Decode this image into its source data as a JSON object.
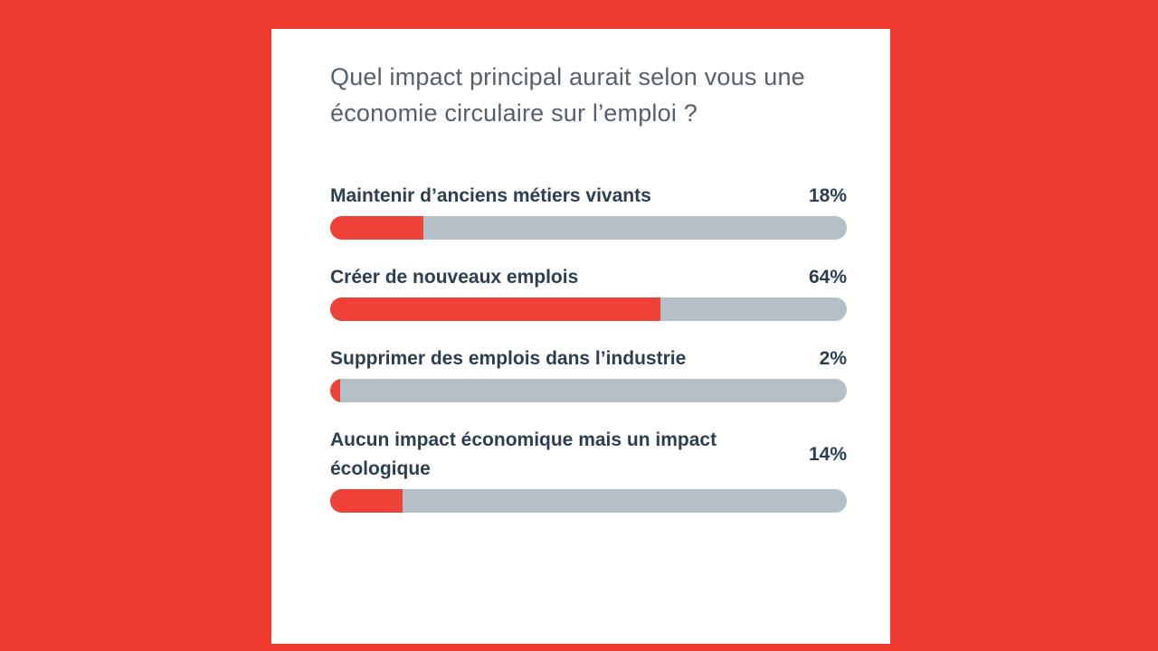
{
  "poll": {
    "question": "Quel impact principal aurait selon vous une économie circulaire sur l’emploi ?",
    "options": [
      {
        "label": "Maintenir d’anciens métiers vivants",
        "pct": "18%",
        "value": 18
      },
      {
        "label": "Créer de nouveaux emplois",
        "pct": "64%",
        "value": 64
      },
      {
        "label": "Supprimer des emplois dans l’industrie",
        "pct": "2%",
        "value": 2
      },
      {
        "label": "Aucun impact économique mais un impact écologique",
        "pct": "14%",
        "value": 14
      }
    ]
  },
  "colors": {
    "background": "#EF3B30",
    "card_background": "#FFFFFF",
    "bar_fill": "#EE4238",
    "bar_track": "#B4BFC7",
    "question_text": "#55606B",
    "label_text": "#2C3E50"
  },
  "chart_data": {
    "type": "bar",
    "orientation": "horizontal",
    "title": "Quel impact principal aurait selon vous une économie circulaire sur l’emploi ?",
    "categories": [
      "Maintenir d’anciens métiers vivants",
      "Créer de nouveaux emplois",
      "Supprimer des emplois dans l’industrie",
      "Aucun impact économique mais un impact écologique"
    ],
    "values": [
      18,
      64,
      2,
      14
    ],
    "data_labels": [
      "18%",
      "64%",
      "2%",
      "14%"
    ],
    "unit": "%",
    "xlim": [
      0,
      100
    ],
    "grid": false,
    "legend": false
  }
}
